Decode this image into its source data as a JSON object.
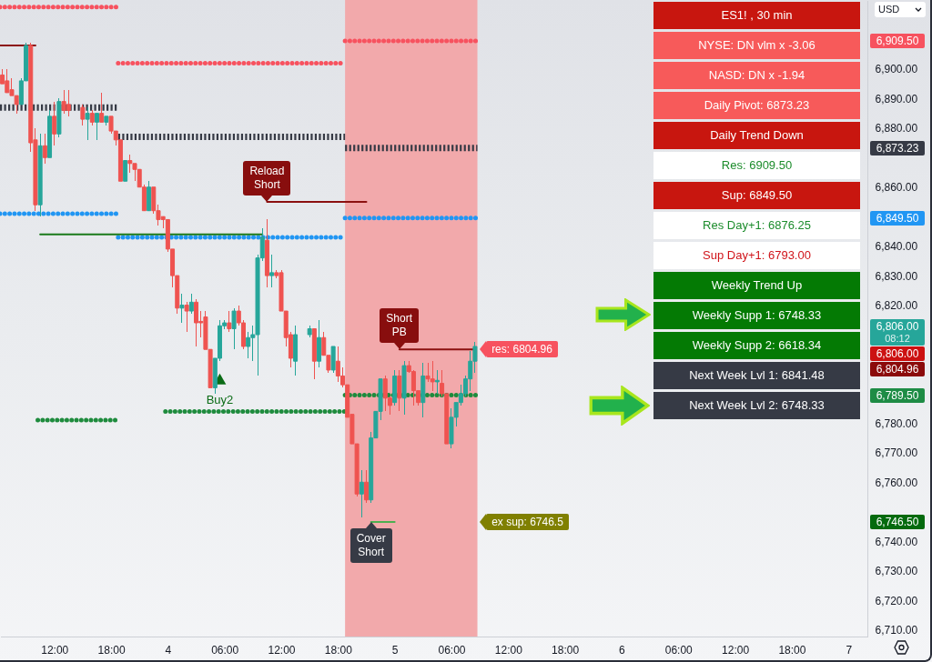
{
  "chart_data": [
    {
      "type": "candlestick",
      "x": [
        "--11-03T06:30",
        "--11-03T07:00",
        "--11-03T07:30",
        "--11-03T08:00",
        "--11-03T08:30",
        "--11-03T09:00",
        "--11-03T09:30",
        "--11-03T10:00",
        "--11-03T10:30",
        "--11-03T11:00",
        "--11-03T11:30",
        "--11-03T12:00",
        "--11-03T12:30",
        "--11-03T13:00",
        "--11-03T13:30",
        "--11-03T15:00",
        "--11-03T15:30",
        "--11-03T16:00",
        "--11-03T16:30",
        "--11-03T17:00",
        "--11-03T17:30",
        "--11-03T18:00",
        "--11-03T18:30",
        "--11-03T19:00",
        "--11-03T19:30",
        "--11-03T20:00",
        "--11-03T20:30",
        "--11-03T21:00",
        "--11-03T21:30",
        "--11-03T22:00",
        "--11-03T22:30",
        "--11-03T23:00",
        "--11-03T23:30",
        "--11-04T00:00",
        "--11-04T00:30",
        "--11-04T01:00",
        "--11-04T01:30",
        "--11-04T02:00",
        "--11-04T02:30",
        "--11-04T03:00",
        "--11-04T03:30",
        "--11-04T04:00",
        "--11-04T04:30",
        "--11-04T05:00",
        "--11-04T05:30",
        "--11-04T06:00",
        "--11-04T06:30",
        "--11-04T07:00",
        "--11-04T07:30",
        "--11-04T08:00",
        "--11-04T08:30",
        "--11-04T09:00",
        "--11-04T09:30",
        "--11-04T10:00",
        "--11-04T10:30",
        "--11-04T11:00",
        "--11-04T11:30",
        "--11-04T12:00",
        "--11-04T12:30",
        "--11-04T13:00",
        "--11-04T13:30",
        "--11-04T15:00",
        "--11-04T15:30",
        "--11-04T16:00",
        "--11-04T16:30",
        "--11-04T17:00",
        "--11-04T17:30",
        "--11-04T18:00",
        "--11-04T18:30",
        "--11-04T19:00",
        "--11-04T19:30",
        "--11-04T20:00",
        "--11-04T20:30",
        "--11-04T21:00",
        "--11-04T21:30",
        "--11-04T22:00",
        "--11-04T22:30",
        "--11-04T23:00",
        "--11-04T23:30",
        "--11-05T00:00",
        "--11-05T00:30",
        "--11-05T01:00",
        "--11-05T01:30",
        "--11-05T02:00",
        "--11-05T02:30",
        "--11-05T03:00",
        "--11-05T03:30",
        "--11-05T04:00",
        "--11-05T04:30",
        "--11-05T05:00",
        "--11-05T05:30",
        "--11-05T06:00",
        "--11-05T06:30",
        "--11-05T07:00",
        "--11-05T07:30",
        "--11-05T08:00",
        "--11-05T08:30"
      ],
      "ohlc": [
        [
          6898,
          6900,
          6895,
          6895
        ],
        [
          6896,
          6900,
          6892,
          6892
        ],
        [
          6893,
          6897,
          6891,
          6891
        ],
        [
          6891,
          6891,
          6885,
          6888
        ],
        [
          6888,
          6897,
          6888,
          6896
        ],
        [
          6896,
          6909,
          6896,
          6908
        ],
        [
          6908,
          6909,
          6872,
          6875
        ],
        [
          6876,
          6880,
          6852,
          6854
        ],
        [
          6854,
          6878,
          6850,
          6874
        ],
        [
          6874,
          6878,
          6868,
          6870
        ],
        [
          6870,
          6886,
          6870,
          6884
        ],
        [
          6884,
          6889,
          6874,
          6878
        ],
        [
          6878,
          6890,
          6877,
          6889
        ],
        [
          6889,
          6893,
          6885,
          6886
        ],
        [
          6888,
          6893,
          6884,
          6886
        ],
        [
          6887,
          6888,
          6881,
          6883
        ],
        [
          6883,
          6887,
          6876,
          6885
        ],
        [
          6885,
          6886,
          6881,
          6882
        ],
        [
          6882,
          6885,
          6876,
          6885
        ],
        [
          6885,
          6892,
          6882,
          6882
        ],
        [
          6882,
          6884,
          6881,
          6884
        ],
        [
          6884,
          6884,
          6878,
          6879
        ],
        [
          6879,
          6879,
          6874,
          6876
        ],
        [
          6876,
          6876,
          6862,
          6862
        ],
        [
          6862,
          6869,
          6862,
          6869
        ],
        [
          6869,
          6871,
          6865,
          6868
        ],
        [
          6868,
          6868,
          6862,
          6866
        ],
        [
          6866,
          6866,
          6860,
          6860
        ],
        [
          6860,
          6861,
          6852,
          6852
        ],
        [
          6852,
          6862,
          6852,
          6860
        ],
        [
          6860,
          6860,
          6851,
          6852
        ],
        [
          6852,
          6854,
          6847,
          6849
        ],
        [
          6850,
          6850,
          6846,
          6849
        ],
        [
          6849,
          6849,
          6838,
          6839
        ],
        [
          6839,
          6839,
          6826,
          6830
        ],
        [
          6830,
          6830,
          6817,
          6819
        ],
        [
          6819,
          6824,
          6814,
          6820
        ],
        [
          6820,
          6821,
          6811,
          6818
        ],
        [
          6818,
          6824,
          6817,
          6821
        ],
        [
          6821,
          6822,
          6806,
          6814
        ],
        [
          6814.5,
          6818,
          6809,
          6814
        ],
        [
          6816,
          6818,
          6805,
          6805
        ],
        [
          6805,
          6805,
          6792,
          6792
        ],
        [
          6792,
          6802,
          6790,
          6802
        ],
        [
          6802,
          6815,
          6801,
          6813
        ],
        [
          6813,
          6815,
          6812,
          6814
        ],
        [
          6814,
          6818,
          6811,
          6812
        ],
        [
          6812,
          6819,
          6805,
          6818
        ],
        [
          6818,
          6820,
          6813,
          6814
        ],
        [
          6814,
          6815,
          6805,
          6806
        ],
        [
          6806,
          6811,
          6802,
          6809
        ],
        [
          6809,
          6813,
          6801,
          6810
        ],
        [
          6810,
          6837,
          6796,
          6836
        ],
        [
          6836,
          6846,
          6835,
          6843
        ],
        [
          6842,
          6849,
          6826,
          6830
        ],
        [
          6830,
          6837,
          6826,
          6831
        ],
        [
          6831,
          6832,
          6829,
          6830
        ],
        [
          6831,
          6832,
          6818,
          6818
        ],
        [
          6818,
          6818,
          6806,
          6809
        ],
        [
          6810,
          6811,
          6799,
          6802
        ],
        [
          6801,
          6813,
          6796,
          6810
        ],
        [
          6810,
          6813,
          6809,
          6812
        ],
        [
          6812,
          6812,
          6795,
          6801
        ],
        [
          6801,
          6815,
          6799,
          6809
        ],
        [
          6809,
          6811,
          6803,
          6803
        ],
        [
          6803,
          6803,
          6797,
          6798
        ],
        [
          6798,
          6806,
          6797,
          6806
        ],
        [
          6801,
          6806,
          6794,
          6796
        ],
        [
          6796,
          6799,
          6792,
          6793
        ],
        [
          6793,
          6793,
          6782,
          6782
        ],
        [
          6783,
          6783,
          6773,
          6773
        ],
        [
          6773,
          6773,
          6755,
          6756
        ],
        [
          6756,
          6764,
          6748,
          6760
        ],
        [
          6760,
          6764,
          6753,
          6754
        ],
        [
          6754,
          6777,
          6753,
          6775
        ],
        [
          6775,
          6784,
          6775,
          6784
        ],
        [
          6784,
          6795,
          6781,
          6795
        ],
        [
          6795,
          6796,
          6784,
          6788.5
        ],
        [
          6788.5,
          6789,
          6783,
          6786
        ],
        [
          6787,
          6798,
          6786,
          6796
        ],
        [
          6796,
          6798,
          6784,
          6788.5
        ],
        [
          6788.5,
          6801,
          6783,
          6799.5
        ],
        [
          6799.5,
          6801,
          6797,
          6797.5
        ],
        [
          6797.5,
          6798,
          6786,
          6791
        ],
        [
          6791,
          6791,
          6786,
          6787
        ],
        [
          6787,
          6800.5,
          6782,
          6796
        ],
        [
          6796,
          6800.5,
          6794,
          6795
        ],
        [
          6795,
          6801,
          6791,
          6794
        ],
        [
          6794,
          6798,
          6790,
          6794.5
        ],
        [
          6793.5,
          6798,
          6789,
          6790
        ],
        [
          6790,
          6790,
          6773,
          6773
        ],
        [
          6773,
          6785,
          6771.5,
          6782
        ],
        [
          6782,
          6787,
          6779,
          6787
        ],
        [
          6787,
          6793,
          6786,
          6790
        ],
        [
          6790,
          6796,
          6789,
          6795
        ],
        [
          6795,
          6804.5,
          6791,
          6801
        ],
        [
          6801,
          6807.5,
          6797,
          6806
        ]
      ],
      "xlim": [
        "--11-03T06:15",
        "--11-07T02:00"
      ],
      "xticks": [
        {
          "value": "--11-03T12:00",
          "label": "12:00"
        },
        {
          "value": "--11-03T18:00",
          "label": "18:00"
        },
        {
          "value": "--11-04",
          "label": "4"
        },
        {
          "value": "--11-04T06:00",
          "label": "06:00"
        },
        {
          "value": "--11-04T12:00",
          "label": "12:00"
        },
        {
          "value": "--11-04T18:00",
          "label": "18:00"
        },
        {
          "value": "--11-05",
          "label": "5"
        },
        {
          "value": "--11-05T06:00",
          "label": "06:00"
        },
        {
          "value": "--11-05T12:00",
          "label": "12:00"
        },
        {
          "value": "--11-05T18:00",
          "label": "18:00"
        },
        {
          "value": "--11-06",
          "label": "6"
        },
        {
          "value": "--11-06T06:00",
          "label": "06:00"
        },
        {
          "value": "--11-06T12:00",
          "label": "12:00"
        },
        {
          "value": "--11-06T18:00",
          "label": "18:00"
        },
        {
          "value": "--11-07",
          "label": "7"
        }
      ],
      "ylim": [
        6707.7,
        6923.4
      ],
      "yticks": [
        {
          "value": 6710,
          "label": "6,710.00"
        },
        {
          "value": 6720,
          "label": "6,720.00"
        },
        {
          "value": 6730,
          "label": "6,730.00"
        },
        {
          "value": 6740,
          "label": "6,740.00"
        },
        {
          "value": 6760,
          "label": "6,760.00"
        },
        {
          "value": 6770,
          "label": "6,770.00"
        },
        {
          "value": 6780,
          "label": "6,780.00"
        },
        {
          "value": 6820,
          "label": "6,820.00"
        },
        {
          "value": 6830,
          "label": "6,830.00"
        },
        {
          "value": 6840,
          "label": "6,840.00"
        },
        {
          "value": 6860,
          "label": "6,860.00"
        },
        {
          "value": 6880,
          "label": "6,880.00"
        },
        {
          "value": 6890,
          "label": "6,890.00"
        },
        {
          "value": 6900,
          "label": "6,900.00"
        }
      ],
      "bands": [
        {
          "axis": "x",
          "from": "--11-04T18:45",
          "to": "--11-05T08:45",
          "color": "#f2a9ab"
        }
      ],
      "series": [
        {
          "type": "line",
          "x": [
            "--11-03T06:15",
            "--11-03T18:45"
          ],
          "values": [
            6921,
            6921
          ],
          "color": "#f7525f",
          "line_style": "dotted"
        },
        {
          "type": "line",
          "x": [
            "--11-03T18:45",
            "--11-04T18:45"
          ],
          "values": [
            6902,
            6902
          ],
          "color": "#f7525f",
          "line_style": "dotted"
        },
        {
          "type": "line",
          "x": [
            "--11-04T18:45",
            "--11-05T08:45"
          ],
          "values": [
            6909.5,
            6909.5
          ],
          "color": "#f7525f",
          "line_style": "dotted"
        },
        {
          "type": "line",
          "x": [
            "--11-03T06:15",
            "--11-03T18:45"
          ],
          "values": [
            6887,
            6887
          ],
          "color": "#363a45",
          "line_style": "dashed"
        },
        {
          "type": "line",
          "x": [
            "--11-03T18:45",
            "--11-04T18:45"
          ],
          "values": [
            6877,
            6877
          ],
          "color": "#363a45",
          "line_style": "dashed"
        },
        {
          "type": "line",
          "x": [
            "--11-04T18:45",
            "--11-05T08:45"
          ],
          "values": [
            6873.23,
            6873.23
          ],
          "color": "#363a45",
          "line_style": "dashed"
        },
        {
          "type": "line",
          "x": [
            "--11-03T06:15",
            "--11-03T18:45"
          ],
          "values": [
            6851,
            6851
          ],
          "color": "#2196f3",
          "line_style": "dotted"
        },
        {
          "type": "line",
          "x": [
            "--11-03T18:45",
            "--11-04T18:45"
          ],
          "values": [
            6843,
            6843
          ],
          "color": "#2196f3",
          "line_style": "dotted"
        },
        {
          "type": "line",
          "x": [
            "--11-04T18:45",
            "--11-05T08:45"
          ],
          "values": [
            6849.5,
            6849.5
          ],
          "color": "#2196f3",
          "line_style": "dotted"
        },
        {
          "type": "line",
          "x": [
            "--11-03T10:15",
            "--11-03T18:45"
          ],
          "values": [
            6781,
            6781
          ],
          "color": "#1e8b3d",
          "line_style": "dotted"
        },
        {
          "type": "line",
          "x": [
            "--11-03T23:45",
            "--11-04T18:45"
          ],
          "values": [
            6784,
            6784
          ],
          "color": "#1e8b3d",
          "line_style": "dotted"
        },
        {
          "type": "line",
          "x": [
            "--11-04T18:45",
            "--11-05T08:45"
          ],
          "values": [
            6789.5,
            6789.5
          ],
          "color": "#1e8b3d",
          "line_style": "dotted"
        },
        {
          "type": "line",
          "x": [
            "--11-03T10:30",
            "--11-04T10:00"
          ],
          "values": [
            6844,
            6844
          ],
          "color": "#1a7a1a",
          "line_style": "solid"
        },
        {
          "type": "line",
          "x": [
            "--11-03T06:15",
            "--11-03T10:00"
          ],
          "values": [
            6908,
            6908
          ],
          "color": "#8b1010",
          "line_style": "solid"
        },
        {
          "type": "line",
          "x": [
            "--11-04T10:30",
            "--11-04T21:00"
          ],
          "values": [
            6855,
            6855
          ],
          "color": "#8b1010",
          "line_style": "solid"
        },
        {
          "type": "line",
          "x": [
            "--11-05T00:30",
            "--11-05T08:30"
          ],
          "values": [
            6804.96,
            6804.96
          ],
          "color": "#8b1010",
          "line_style": "solid"
        },
        {
          "type": "line",
          "x": [
            "--11-04T21:30",
            "--11-05T00:00"
          ],
          "values": [
            6746.5,
            6746.5
          ],
          "color": "#4caf50",
          "line_style": "solid"
        },
        {
          "type": "scatter",
          "name": "Buy2",
          "x": [
            "--11-04T05:30"
          ],
          "values": [
            6795
          ],
          "color": "#0b6b16",
          "marker": "triangle"
        }
      ],
      "annotations": [
        {
          "text": "Reload Short",
          "x": "--11-04T10:30",
          "y": 6855
        },
        {
          "text": "Short PB",
          "x": "--11-05T00:30",
          "y": 6804.96
        },
        {
          "text": "Cover Short",
          "x": "--11-04T21:30",
          "y": 6746.5
        },
        {
          "text": "res: 6804.96",
          "x": "--11-05T09:00",
          "y": 6804.96
        },
        {
          "text": "ex sup: 6746.5",
          "x": "--11-05T09:00",
          "y": 6746.5
        },
        "6,909.50",
        "6,873.23",
        "6,849.50",
        "6,806.00",
        "08:12",
        "6,806.00",
        "6,804.96",
        "6,789.50",
        "6,746.50",
        "USD"
      ]
    },
    {
      "type": "other",
      "annotations": [
        "ES1! , 30 min",
        "NYSE: DN vlm x -3.06",
        "NASD: DN x -1.94",
        "Daily Pivot: 6873.23",
        "Daily Trend Down",
        "Res: 6909.50",
        "Sup: 6849.50",
        "Res Day+1: 6876.25",
        "Sup Day+1: 6793.00",
        "Weekly Trend Up",
        "Weekly Supp 1: 6748.33",
        "Weekly Supp 2: 6618.34",
        "Next Week Lvl 1: 6841.48",
        "Next Week Lvl 2: 6748.33"
      ]
    }
  ]
}
